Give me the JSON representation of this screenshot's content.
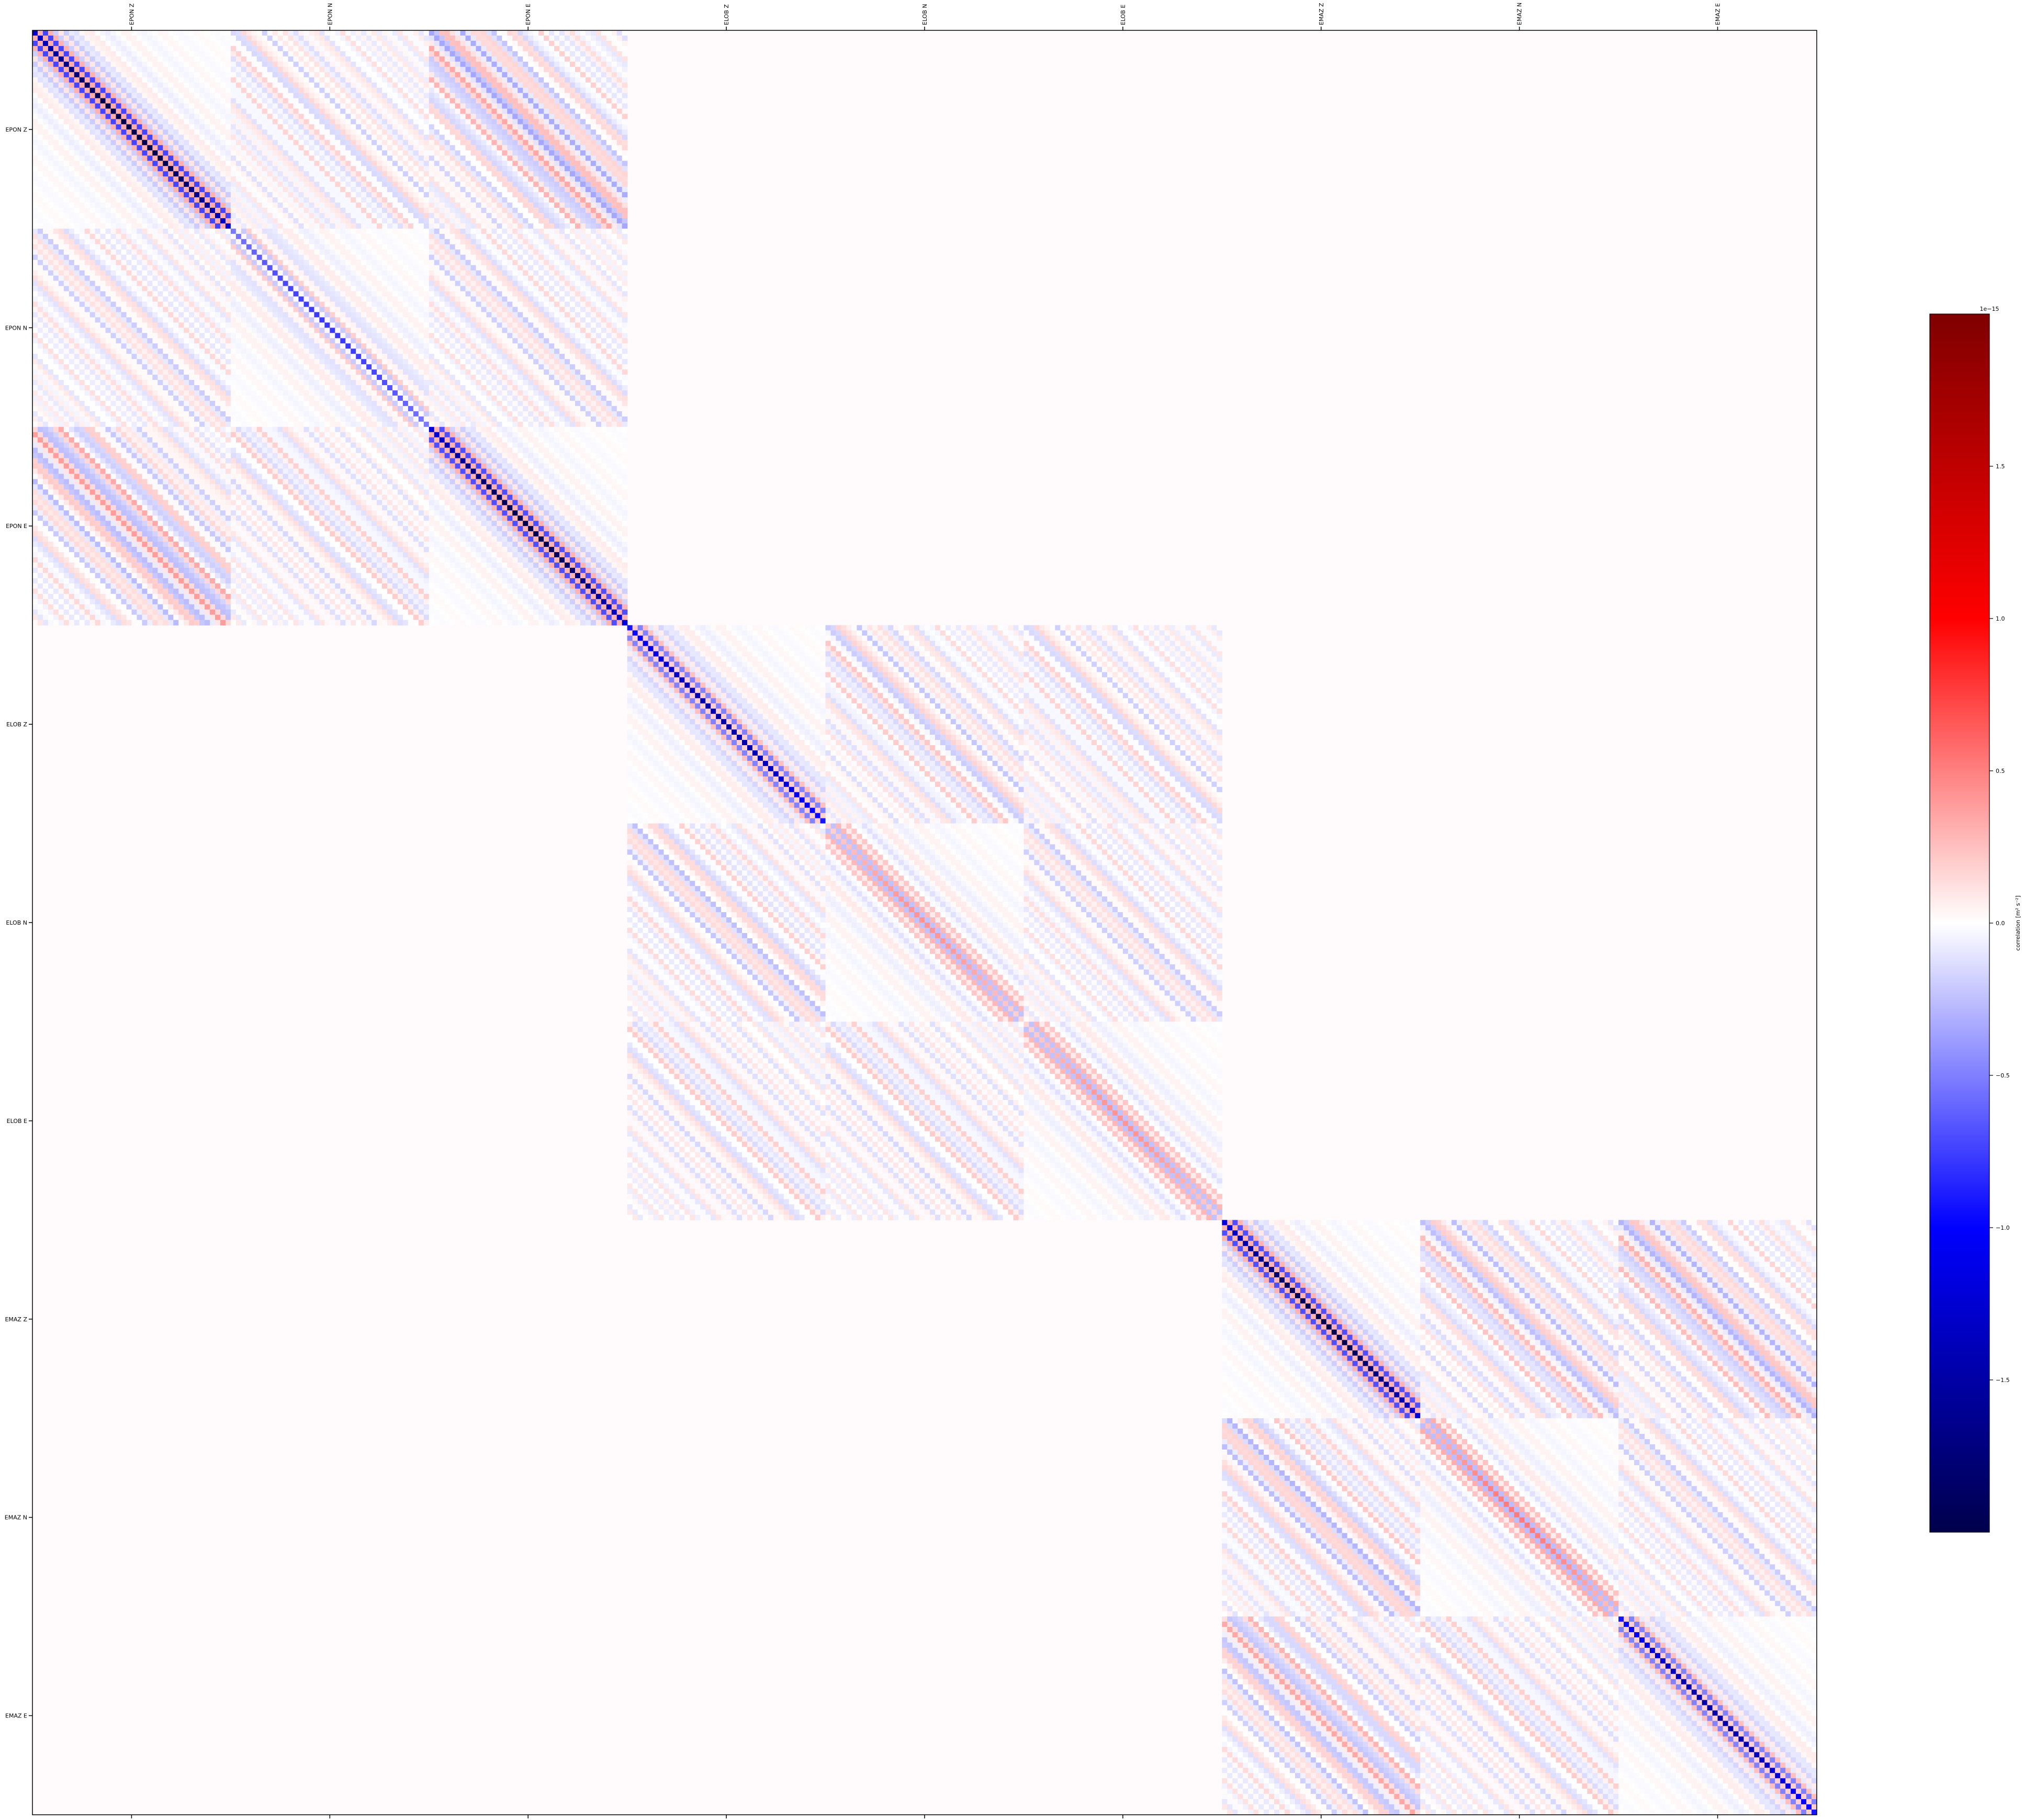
{
  "chart_data": {
    "type": "heatmap",
    "title": "",
    "description_of_values": "Block-diagonal correlation matrix between seismic channels; 3 stations x 3 components; each 3x3 station group holds 9 sub-blocks with strong diagonal bands, zero elsewhere",
    "x_tick_labels": [
      "EPON Z",
      "EPON N",
      "EPON E",
      "ELOB Z",
      "ELOB N",
      "ELOB E",
      "EMAZ Z",
      "EMAZ N",
      "EMAZ E"
    ],
    "y_tick_labels": [
      "EPON Z",
      "EPON N",
      "EPON E",
      "ELOB Z",
      "ELOB N",
      "ELOB E",
      "EMAZ Z",
      "EMAZ N",
      "EMAZ E"
    ],
    "station_groups": [
      {
        "station": "EPON",
        "channels": [
          "EPON Z",
          "EPON N",
          "EPON E"
        ],
        "diagonal_peak": [
          -1.9,
          -0.6,
          -1.8
        ],
        "offdiag_level": [
          [
            0,
            -0.15,
            -0.35
          ],
          [
            -0.15,
            0,
            -0.15
          ],
          [
            -0.35,
            -0.15,
            0
          ]
        ]
      },
      {
        "station": "ELOB",
        "channels": [
          "ELOB Z",
          "ELOB N",
          "ELOB E"
        ],
        "diagonal_peak": [
          -1.3,
          0.6,
          0.6
        ],
        "offdiag_level": [
          [
            0,
            -0.2,
            -0.15
          ],
          [
            -0.2,
            0,
            -0.15
          ],
          [
            -0.15,
            -0.15,
            0
          ]
        ]
      },
      {
        "station": "EMAZ",
        "channels": [
          "EMAZ Z",
          "EMAZ N",
          "EMAZ E"
        ],
        "diagonal_peak": [
          -1.8,
          0.7,
          -1.3
        ],
        "offdiag_level": [
          [
            0,
            -0.25,
            -0.3
          ],
          [
            -0.25,
            0,
            -0.15
          ],
          [
            -0.3,
            -0.15,
            0
          ]
        ]
      }
    ],
    "colorbar": {
      "label": "correlation [m² s⁻²]",
      "offset_text": "1e−15",
      "colormap": "seismic",
      "range": [
        -2.0,
        2.0
      ],
      "ticks": [
        -1.5,
        -1.0,
        -0.5,
        0.0,
        0.5,
        1.0,
        1.5
      ],
      "tick_labels": [
        "−1.5",
        "−1.0",
        "−0.5",
        "0.0",
        "0.5",
        "1.0",
        "1.5"
      ]
    },
    "grid": false,
    "x_axis_position": "top",
    "x_label_rotation": "vertical"
  }
}
